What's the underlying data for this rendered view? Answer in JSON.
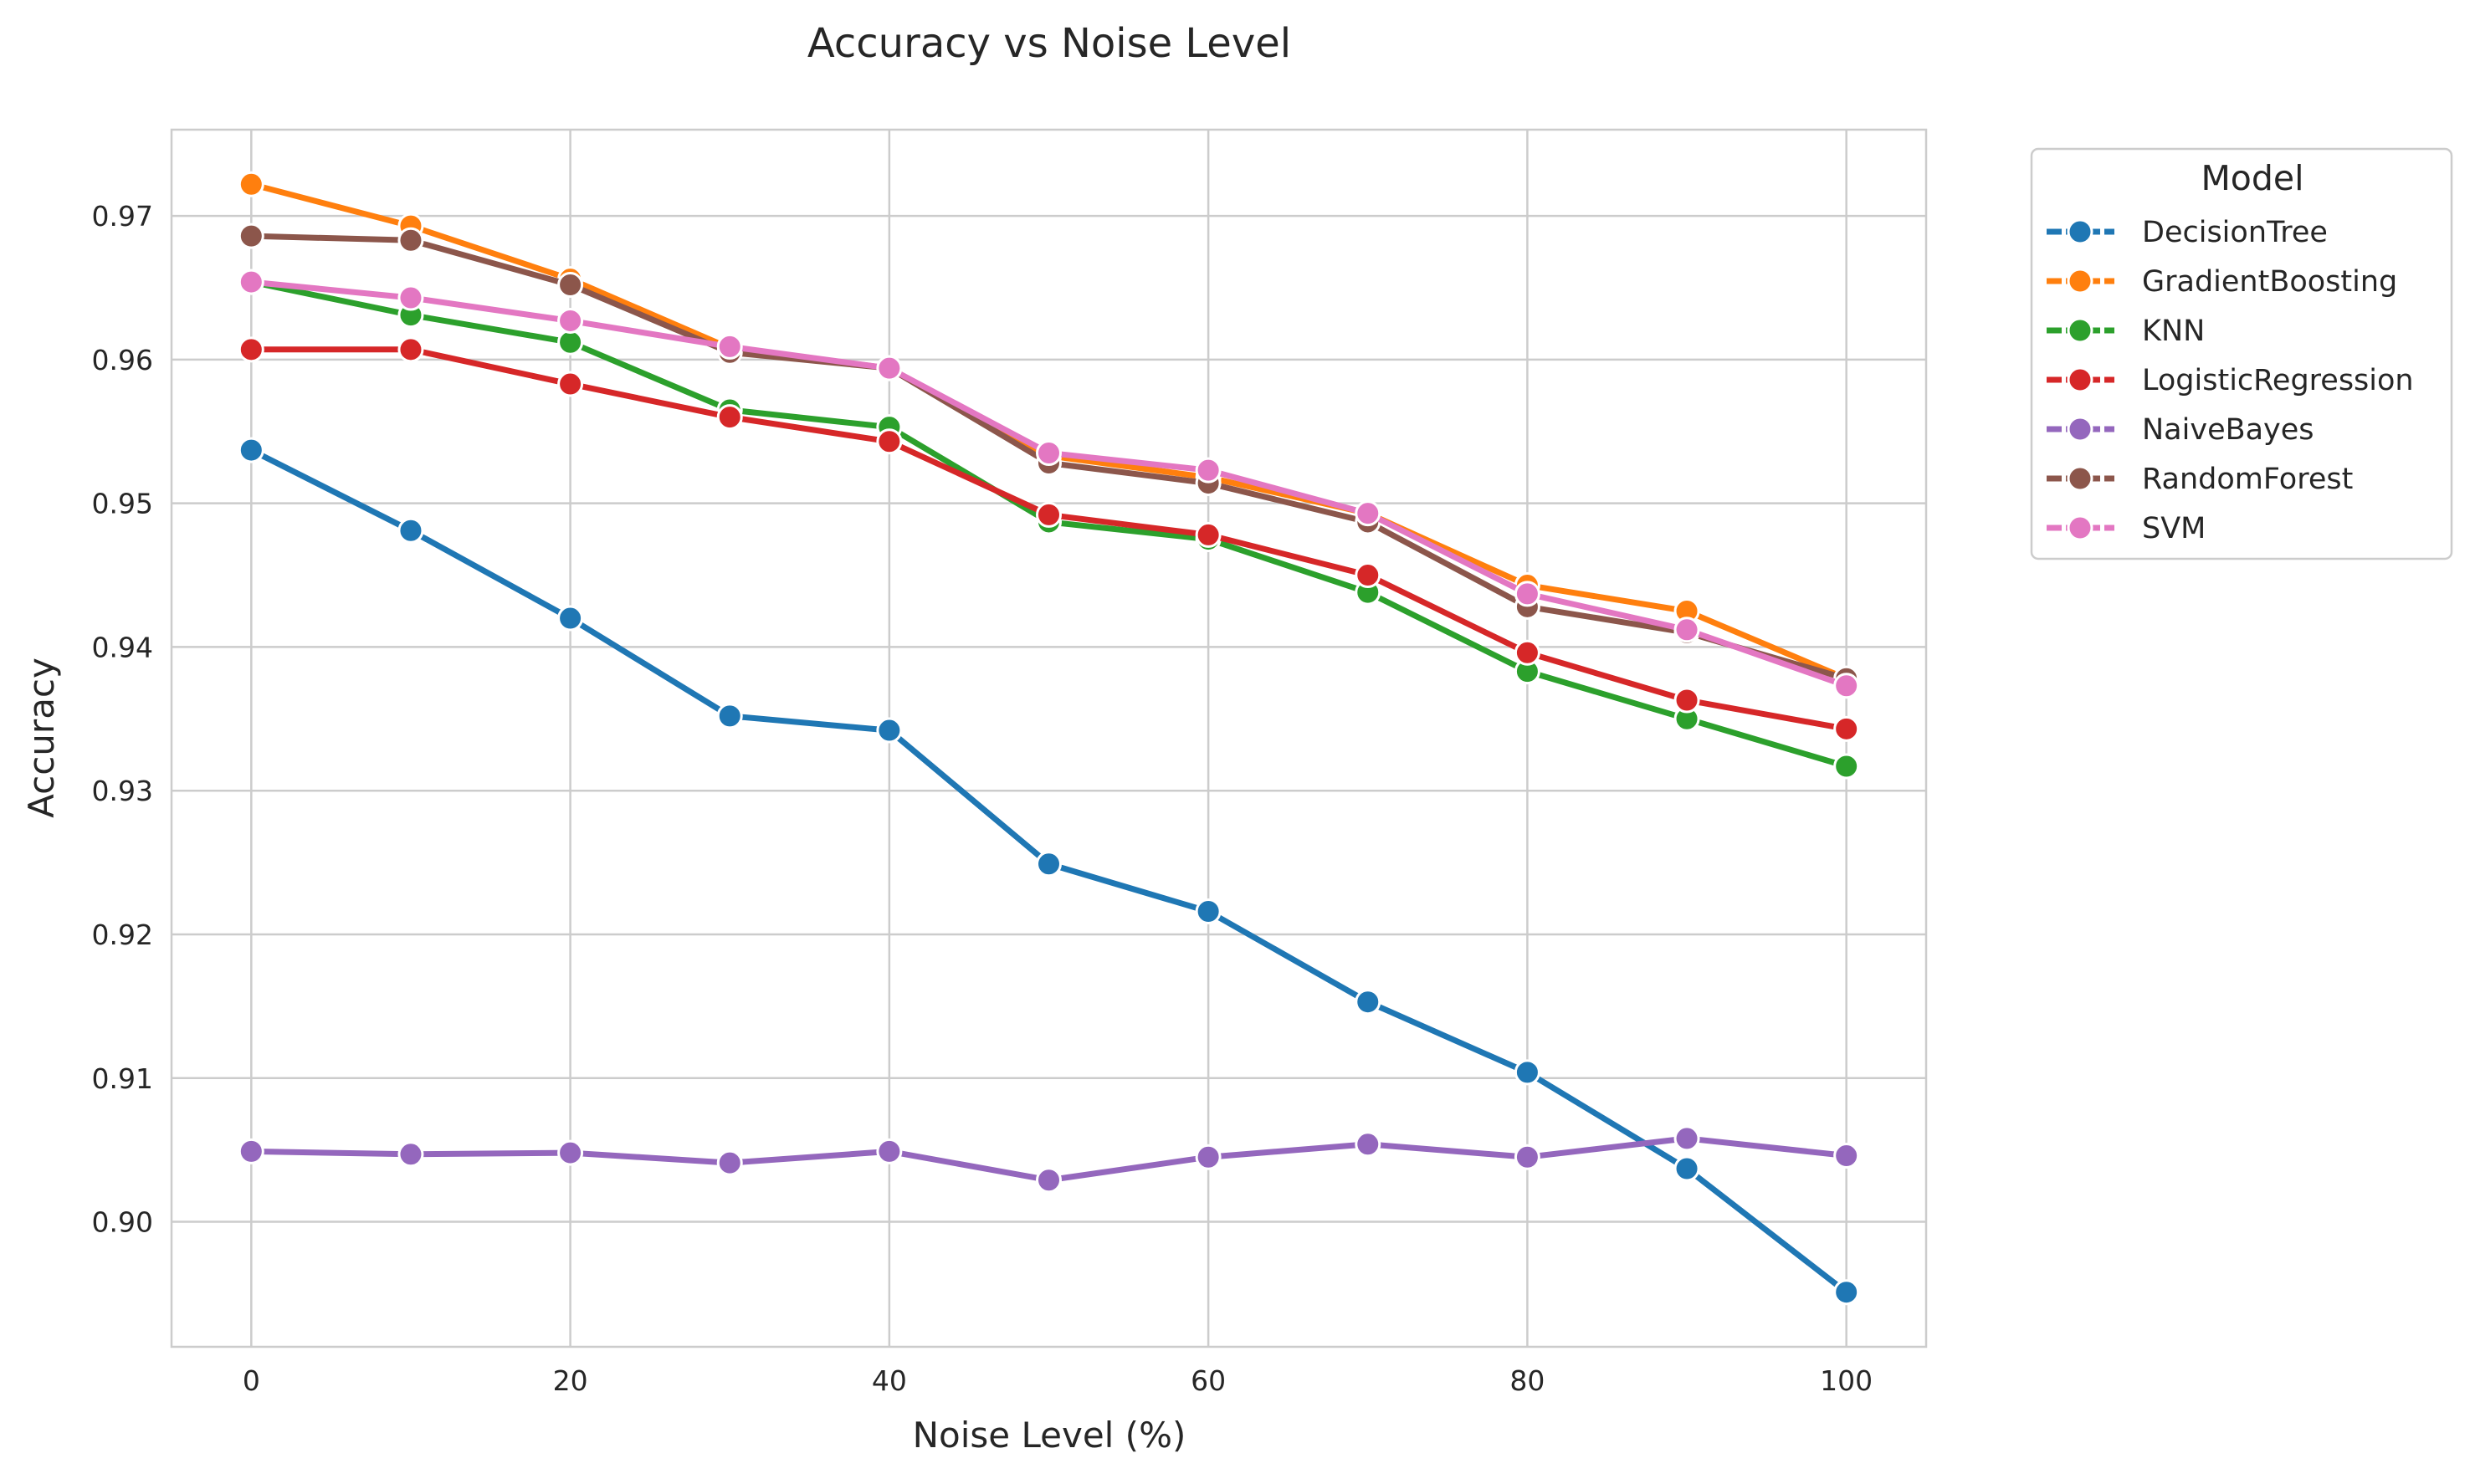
{
  "chart_data": {
    "type": "line",
    "title": "Accuracy vs Noise Level",
    "xlabel": "Noise Level (%)",
    "ylabel": "Accuracy",
    "x": [
      0,
      10,
      20,
      30,
      40,
      50,
      60,
      70,
      80,
      90,
      100
    ],
    "xlim": [
      -5,
      105
    ],
    "ylim": [
      0.8913,
      0.976
    ],
    "xticks": [
      0,
      20,
      40,
      60,
      80,
      100
    ],
    "xtick_labels": [
      "0",
      "20",
      "40",
      "60",
      "80",
      "100"
    ],
    "yticks": [
      0.9,
      0.91,
      0.92,
      0.93,
      0.94,
      0.95,
      0.96,
      0.97
    ],
    "ytick_labels": [
      "0.90",
      "0.91",
      "0.92",
      "0.93",
      "0.94",
      "0.95",
      "0.96",
      "0.97"
    ],
    "grid": true,
    "legend": {
      "title": "Model",
      "placement": "outside-top-right"
    },
    "series": [
      {
        "name": "DecisionTree",
        "color": "#1f77b4",
        "values": [
          0.9537,
          0.9481,
          0.942,
          0.9352,
          0.9342,
          0.9249,
          0.9216,
          0.9153,
          0.9104,
          0.9037,
          0.8951
        ]
      },
      {
        "name": "GradientBoosting",
        "color": "#ff7f0e",
        "values": [
          0.9722,
          0.9693,
          0.9656,
          0.9608,
          0.9594,
          0.9533,
          0.9518,
          0.9493,
          0.9443,
          0.9425,
          0.9378
        ]
      },
      {
        "name": "KNN",
        "color": "#2ca02c",
        "values": [
          0.9654,
          0.9631,
          0.9612,
          0.9565,
          0.9553,
          0.9487,
          0.9475,
          0.9438,
          0.9383,
          0.935,
          0.9317
        ]
      },
      {
        "name": "LogisticRegression",
        "color": "#d62728",
        "values": [
          0.9607,
          0.9607,
          0.9583,
          0.956,
          0.9543,
          0.9492,
          0.9478,
          0.945,
          0.9396,
          0.9363,
          0.9343
        ]
      },
      {
        "name": "NaiveBayes",
        "color": "#9467bd",
        "values": [
          0.9049,
          0.9047,
          0.9048,
          0.9041,
          0.9049,
          0.9029,
          0.9045,
          0.9054,
          0.9045,
          0.9058,
          0.9046
        ]
      },
      {
        "name": "RandomForest",
        "color": "#8c564b",
        "values": [
          0.9686,
          0.9683,
          0.9652,
          0.9605,
          0.9594,
          0.9528,
          0.9514,
          0.9487,
          0.9428,
          0.941,
          0.9378
        ]
      },
      {
        "name": "SVM",
        "color": "#e377c2",
        "values": [
          0.9654,
          0.9643,
          0.9627,
          0.9609,
          0.9594,
          0.9535,
          0.9523,
          0.9493,
          0.9437,
          0.9412,
          0.9373
        ]
      }
    ]
  }
}
